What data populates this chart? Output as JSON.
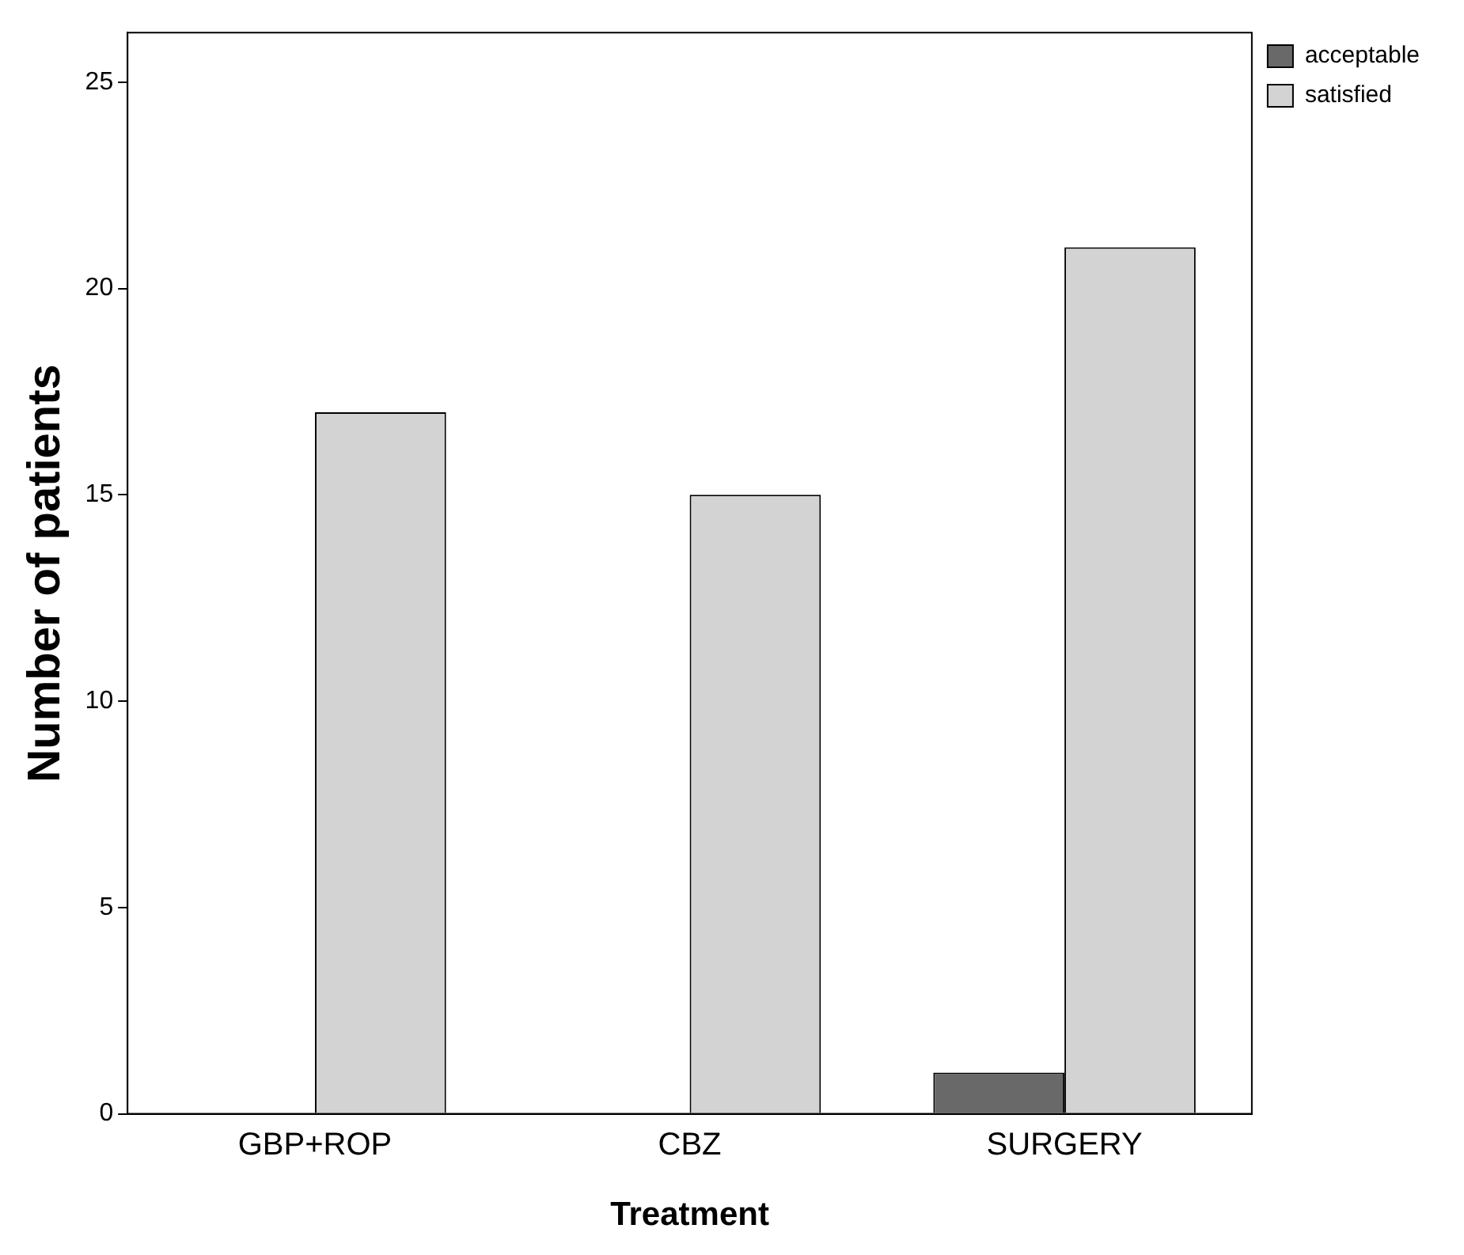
{
  "chart_data": {
    "type": "bar",
    "xlabel": "Treatment",
    "ylabel": "Number of patients",
    "categories": [
      "GBP+ROP",
      "CBZ",
      "SURGERY"
    ],
    "series": [
      {
        "name": "acceptable",
        "color": "#696969",
        "values": [
          0,
          0,
          1
        ]
      },
      {
        "name": "satisfied",
        "color": "#d3d3d3",
        "values": [
          17,
          15,
          21
        ]
      }
    ],
    "ylim": [
      0,
      26.2
    ],
    "yticks": [
      0,
      5,
      10,
      15,
      20,
      25
    ],
    "grid": false,
    "legend": "top right"
  }
}
